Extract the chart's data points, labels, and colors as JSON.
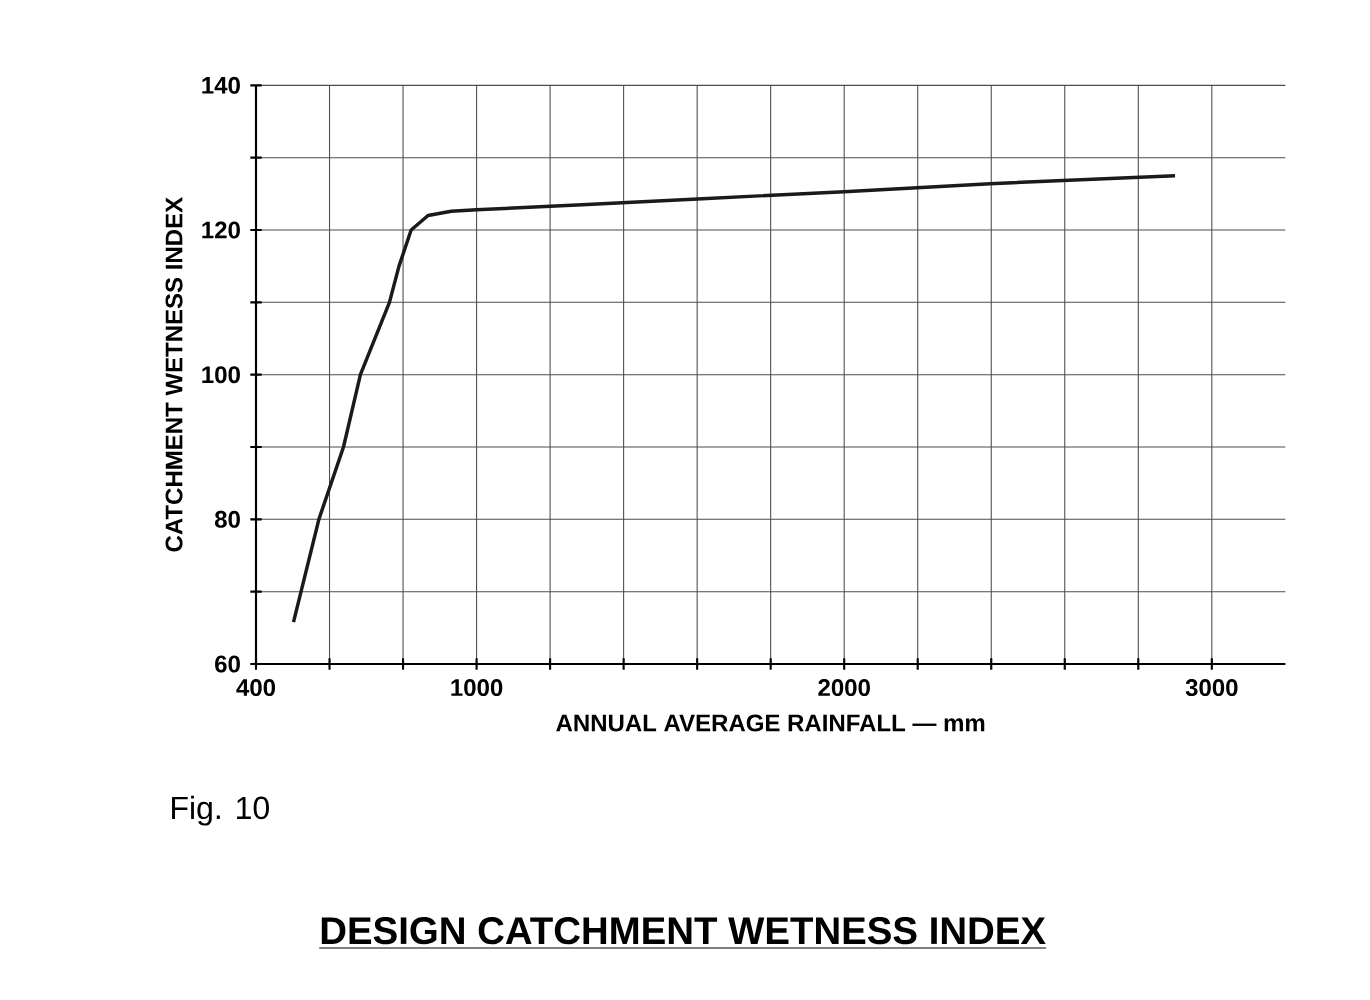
{
  "chart_data": {
    "type": "line",
    "title": "DESIGN CATCHMENT WETNESS INDEX",
    "xlabel": "ANNUAL AVERAGE RAINFALL — mm",
    "ylabel": "CATCHMENT WETNESS INDEX",
    "annotations": [
      "Fig. 10"
    ],
    "x": [
      502,
      571,
      638,
      684,
      763,
      789,
      822,
      868,
      931,
      1000,
      1287,
      1601,
      2000,
      2397,
      2900
    ],
    "values": [
      65.8,
      80,
      90,
      100,
      110,
      115,
      120,
      122,
      122.6,
      122.8,
      123.5,
      124.3,
      125.3,
      126.4,
      127.5
    ],
    "color": "#1a1a1a",
    "xlim": [
      400,
      3200
    ],
    "ylim": [
      60,
      140
    ],
    "xticks": [
      400,
      {
        "value": 600,
        "label": null
      },
      {
        "value": 800,
        "label": null
      },
      1000,
      {
        "value": 1200,
        "label": null
      },
      {
        "value": 1400,
        "label": null
      },
      {
        "value": 1600,
        "label": null
      },
      {
        "value": 1800,
        "label": null
      },
      2000,
      {
        "value": 2200,
        "label": null
      },
      {
        "value": 2400,
        "label": null
      },
      {
        "value": 2600,
        "label": null
      },
      {
        "value": 2800,
        "label": null
      },
      3000
    ],
    "yticks": [
      60,
      {
        "value": 70,
        "label": null
      },
      80,
      {
        "value": 90,
        "label": null
      },
      100,
      {
        "value": 110,
        "label": null
      },
      120,
      {
        "value": 130,
        "label": null
      },
      140
    ],
    "grid": true,
    "marker": "none",
    "line_style": "solid"
  }
}
